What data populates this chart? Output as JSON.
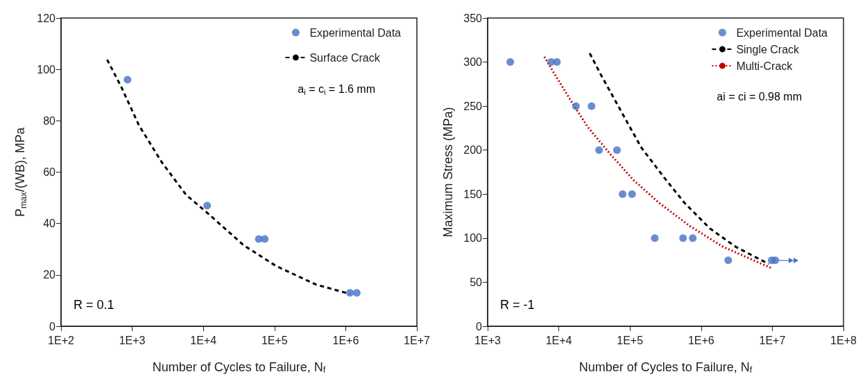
{
  "chart_data": [
    {
      "type": "scatter",
      "xlabel": "Number of Cycles to Failure, N$_{f}$",
      "ylabel": "P$_{max}$/(WB), MPa",
      "log": "x",
      "xlim": [
        100,
        10000000
      ],
      "ylim": [
        0,
        120
      ],
      "xticks": [
        {
          "value": 100,
          "label": "1E+2"
        },
        {
          "value": 1000,
          "label": "1E+3"
        },
        {
          "value": 10000,
          "label": "1E+4"
        },
        {
          "value": 100000,
          "label": "1E+5"
        },
        {
          "value": 1000000,
          "label": "1E+6"
        },
        {
          "value": 10000000,
          "label": "1E+7"
        }
      ],
      "yticks": [
        0,
        20,
        40,
        60,
        80,
        100,
        120
      ],
      "grid": false,
      "legend": "top right",
      "annotations": [
        "a$_{i}$ = c$_{i}$ = 1.6 mm",
        "R = 0.1"
      ],
      "series": [
        {
          "name": "Experimental Data",
          "type": "scatter",
          "marker": "circle",
          "color": "#4472c4",
          "x": [
            860,
            11300,
            60000,
            72800,
            1150000,
            1430000
          ],
          "values": [
            96,
            47,
            34,
            34,
            13,
            13
          ]
        },
        {
          "name": "Surface Crack",
          "type": "line",
          "marker": "none",
          "line_style": "dashed",
          "color": "#000000",
          "x": [
            444,
            693,
            1245,
            2610,
            5700,
            11500,
            37000,
            106000,
            385000,
            1150000
          ],
          "values": [
            103.8,
            93.5,
            78.2,
            63.8,
            51.2,
            44,
            31.5,
            23.4,
            16.2,
            12.6
          ]
        }
      ]
    },
    {
      "type": "scatter",
      "xlabel": "Number of Cycles to Failure, N$_{f}$",
      "ylabel": "Maximum Stress (MPa)",
      "log": "x",
      "xlim": [
        1000,
        100000000
      ],
      "ylim": [
        0,
        350
      ],
      "xticks": [
        {
          "value": 1000,
          "label": "1E+3"
        },
        {
          "value": 10000,
          "label": "1E+4"
        },
        {
          "value": 100000,
          "label": "1E+5"
        },
        {
          "value": 1000000,
          "label": "1E+6"
        },
        {
          "value": 10000000,
          "label": "1E+7"
        },
        {
          "value": 100000000,
          "label": "1E+8"
        }
      ],
      "yticks": [
        0,
        50,
        100,
        150,
        200,
        250,
        300,
        350
      ],
      "grid": false,
      "legend": "top right",
      "annotations": [
        "ai = ci = 0.98 mm",
        "R = -1"
      ],
      "series": [
        {
          "name": "Experimental Data",
          "type": "scatter",
          "marker": "circle",
          "color": "#4472c4",
          "x": [
            2080,
            7800,
            9400,
            17400,
            28800,
            36800,
            65600,
            78700,
            107000,
            223000,
            557000,
            762000,
            2400000,
            9800000,
            11000000
          ],
          "values": [
            300,
            300,
            300,
            250,
            250,
            200,
            200,
            150,
            150,
            100,
            100,
            100,
            75,
            75,
            75
          ]
        },
        {
          "name": "Single Crack",
          "type": "line",
          "marker": "none",
          "line_style": "dashed",
          "color": "#000000",
          "x": [
            27200,
            38400,
            68400,
            144000,
            302000,
            585000,
            1330000,
            3050000,
            8900000
          ],
          "values": [
            310,
            286.6,
            250,
            203,
            168.8,
            140,
            111,
            90.3,
            70.7
          ]
        },
        {
          "name": "Multi-Crack",
          "type": "line",
          "marker": "none",
          "line_style": "dotted",
          "color": "#c00000",
          "x": [
            6250,
            8690,
            14300,
            25400,
            53500,
            112000,
            257000,
            690000,
            2020000,
            10100000
          ],
          "values": [
            306,
            286.6,
            257.9,
            226.4,
            195,
            166,
            140,
            113.9,
            90.3,
            65.4
          ]
        }
      ]
    }
  ]
}
